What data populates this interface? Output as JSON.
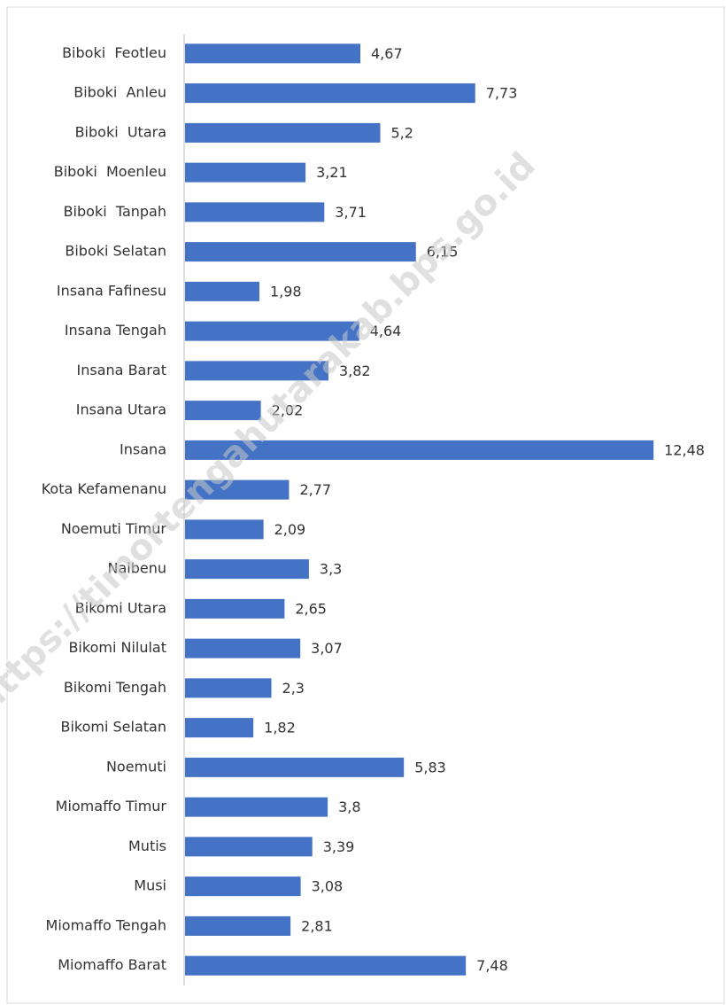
{
  "chart_data": {
    "type": "hbar",
    "categories": [
      "Biboki  Feotleu",
      "Biboki  Anleu",
      "Biboki  Utara",
      "Biboki  Moenleu",
      "Biboki  Tanpah",
      "Biboki Selatan",
      "Insana Fafinesu",
      "Insana Tengah",
      "Insana Barat",
      "Insana Utara",
      "Insana",
      "Kota Kefamenanu",
      "Noemuti Timur",
      "Naibenu",
      "Bikomi Utara",
      "Bikomi Nilulat",
      "Bikomi Tengah",
      "Bikomi Selatan",
      "Noemuti",
      "Miomaffo Timur",
      "Mutis",
      "Musi",
      "Miomaffo Tengah",
      "Miomaffo Barat"
    ],
    "values": [
      4.67,
      7.73,
      5.2,
      3.21,
      3.71,
      6.15,
      1.98,
      4.64,
      3.82,
      2.02,
      12.48,
      2.77,
      2.09,
      3.3,
      2.65,
      3.07,
      2.3,
      1.82,
      5.83,
      3.8,
      3.39,
      3.08,
      2.81,
      7.48
    ],
    "value_labels": [
      "4,67",
      "7,73",
      "5,2",
      "3,21",
      "3,71",
      "6,15",
      "1,98",
      "4,64",
      "3,82",
      "2,02",
      "12,48",
      "2,77",
      "2,09",
      "3,3",
      "2,65",
      "3,07",
      "2,3",
      "1,82",
      "5,83",
      "3,8",
      "3,39",
      "3,08",
      "2,81",
      "7,48"
    ],
    "color": "#4472c4",
    "xlim": [
      0,
      12.5
    ],
    "watermark": "https://timortengahutarakab.bps.go.id"
  }
}
